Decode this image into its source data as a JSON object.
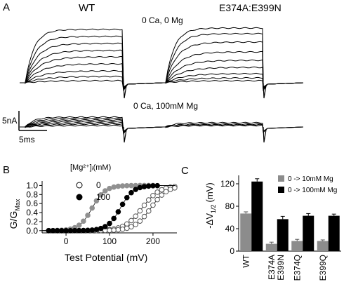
{
  "panel_a": {
    "label": "A",
    "wt_label": "WT",
    "mutant_label": "E374A:E399N",
    "cond_top": "0 Ca, 0 Mg",
    "cond_bottom": "0 Ca, 100mM Mg",
    "scale_y": "5nA",
    "scale_x": "5ms"
  },
  "chart_data": [
    {
      "panel": "B",
      "type": "scatter",
      "xlabel": "Test Potential (mV)",
      "ylabel": "G/G",
      "ylabel_sub": "Max",
      "xlim": [
        -55,
        255
      ],
      "ylim": [
        -0.05,
        1.1
      ],
      "xticks": [
        "0",
        "100",
        "200"
      ],
      "xtick_values": [
        0,
        100,
        200
      ],
      "yticks": [
        "0.0",
        "0.2",
        "0.4",
        "0.6",
        "0.8",
        "1.0"
      ],
      "ytick_values": [
        0,
        0.2,
        0.4,
        0.6,
        0.8,
        1.0
      ],
      "legend_title": "[Mg²⁺]ᵢ(mM)",
      "legend": [
        {
          "marker": "open",
          "label": "0"
        },
        {
          "marker": "filled",
          "label": "100"
        }
      ],
      "series": [
        {
          "marker": "open",
          "color": "#555555",
          "v_half": 175,
          "slope": 20,
          "x": [
            -40,
            -30,
            -20,
            -10,
            0,
            10,
            20,
            30,
            40,
            50,
            60,
            70,
            80,
            90,
            100,
            110,
            120,
            130,
            140,
            150,
            160,
            170,
            180,
            190,
            200,
            210,
            220,
            230,
            240,
            250
          ]
        },
        {
          "marker": "open",
          "color": "#555555",
          "v_half": 195,
          "slope": 19,
          "x": [
            -40,
            -30,
            -20,
            -10,
            0,
            10,
            20,
            30,
            40,
            50,
            60,
            70,
            80,
            90,
            100,
            110,
            120,
            130,
            140,
            150,
            160,
            170,
            180,
            190,
            200,
            210,
            220,
            230,
            240,
            250
          ]
        },
        {
          "marker": "filled",
          "color": "#909090",
          "v_half": 60,
          "slope": 15,
          "x": [
            -40,
            -30,
            -20,
            -10,
            0,
            10,
            20,
            30,
            40,
            50,
            60,
            70,
            80,
            90,
            100,
            110,
            120,
            130,
            140,
            150,
            160,
            170,
            180,
            190,
            200
          ]
        },
        {
          "marker": "filled",
          "color": "#000000",
          "v_half": 125,
          "slope": 15,
          "x": [
            -40,
            -30,
            -20,
            -10,
            0,
            10,
            20,
            30,
            40,
            50,
            60,
            70,
            80,
            90,
            100,
            110,
            120,
            130,
            140,
            150,
            160,
            170,
            180,
            190,
            200,
            210
          ]
        }
      ]
    },
    {
      "panel": "C",
      "type": "bar",
      "ylabel": "-ΔV",
      "ylabel_sub": "1/2",
      "ylabel_unit": "(mV)",
      "ylim": [
        0,
        135
      ],
      "yticks": [
        "0",
        "40",
        "80",
        "120"
      ],
      "ytick_values": [
        0,
        40,
        80,
        120
      ],
      "categories": [
        "WT",
        "E374A E399N",
        "E374Q",
        "E399Q"
      ],
      "category_lines": [
        [
          "WT"
        ],
        [
          "E374A",
          "E399N"
        ],
        [
          "E374Q"
        ],
        [
          "E399Q"
        ]
      ],
      "series": [
        {
          "name": "0  ->   10mM Mg",
          "color": "#8c8c8c",
          "values": [
            67,
            13,
            18,
            18
          ],
          "errors": [
            3,
            3,
            3,
            2
          ]
        },
        {
          "name": "0  ->  100mM Mg",
          "color": "#000000",
          "values": [
            124,
            57,
            63,
            63
          ],
          "errors": [
            5,
            5,
            4,
            3
          ]
        }
      ]
    }
  ]
}
